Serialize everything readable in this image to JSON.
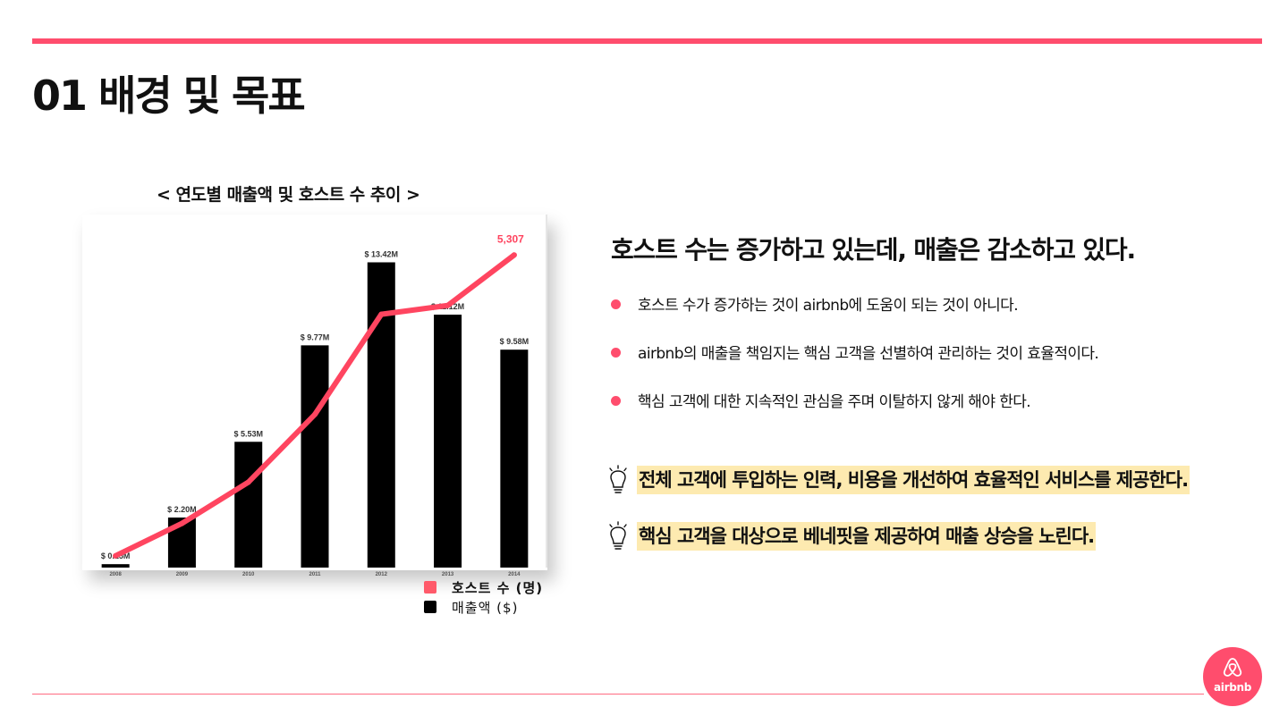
{
  "page": {
    "title": "01 배경 및 목표",
    "accent_color": "#ff4d6d"
  },
  "chart_data": {
    "type": "bar",
    "title": "< 연도별 매출액 및 호스트 수 추이 >",
    "categories": [
      "2008",
      "2009",
      "2010",
      "2011",
      "2012",
      "2013",
      "2014"
    ],
    "series": [
      {
        "name": "매출액 ($)",
        "type": "bar",
        "color": "#000000",
        "values": [
          0.15,
          2.2,
          5.53,
          9.77,
          13.42,
          11.12,
          9.58
        ],
        "labels": [
          "$ 0.15M",
          "$ 2.20M",
          "$ 5.53M",
          "$ 9.77M",
          "$ 13.42M",
          "$ 11.12M",
          "$ 9.58M"
        ]
      },
      {
        "name": "호스트 수 (명)",
        "type": "line",
        "color": "#ff4560",
        "values": [
          200,
          750,
          1450,
          2600,
          4300,
          4450,
          5307
        ],
        "end_label": "5,307"
      }
    ],
    "bar_ylim": [
      0,
      14.5
    ],
    "line_ylim": [
      0,
      5600
    ],
    "legend": "bottom-right",
    "grid": false
  },
  "legend": [
    {
      "label": "호스트 수 (명)",
      "color": "#ff5a6a"
    },
    {
      "label": "매출액 ($)",
      "color": "#000000"
    }
  ],
  "main": {
    "headline": "호스트 수는 증가하고 있는데, 매출은 감소하고 있다.",
    "bullets": [
      "호스트 수가 증가하는 것이 airbnb에 도움이 되는 것이 아니다.",
      "airbnb의 매출을 책임지는 핵심 고객을 선별하여 관리하는 것이 효율적이다.",
      "핵심 고객에 대한 지속적인 관심을 주며 이탈하지 않게 해야 한다."
    ],
    "callouts": [
      {
        "text": "전체 고객에 투입하는 인력, 비용을 개선하여 효율적인 서비스를 제공한다.",
        "icon": "lightbulb-icon"
      },
      {
        "text": "핵심 고객을 대상으로 베네핏을 제공하여 매출 상승을 노린다.",
        "icon": "lightbulb-icon"
      }
    ]
  },
  "logo": {
    "text": "airbnb",
    "icon": "airbnb-belo-icon",
    "color": "#ff4d6d"
  }
}
